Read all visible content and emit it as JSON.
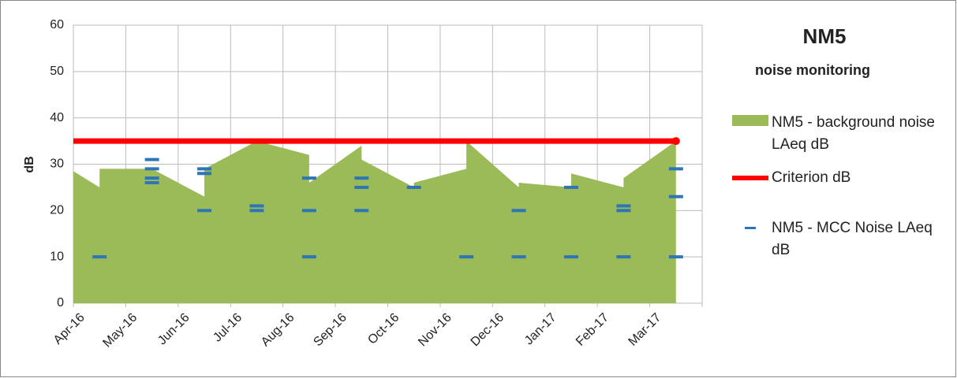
{
  "chart_data": {
    "type": "combo",
    "title": "NM5",
    "subtitle": "noise monitoring",
    "y_label": "dB",
    "categories": [
      "Apr-16",
      "May-16",
      "Jun-16",
      "Jul-16",
      "Aug-16",
      "Sep-16",
      "Oct-16",
      "Nov-16",
      "Dec-16",
      "Jan-17",
      "Feb-17",
      "Mar-17"
    ],
    "xlim": [
      0,
      12
    ],
    "ylim": [
      0,
      60
    ],
    "yticks": [
      0,
      10,
      20,
      30,
      40,
      50,
      60
    ],
    "grid": true,
    "series": [
      {
        "name": "NM5 - background noise  LAeq dB",
        "type": "area",
        "color": "#9bbb59",
        "x": [
          0,
          0.5,
          0.5,
          1.5,
          2.5,
          2.5,
          3.5,
          4.5,
          4.5,
          5.5,
          5.5,
          6.5,
          6.5,
          7.5,
          7.5,
          8.5,
          8.5,
          9.5,
          9.5,
          10.5,
          10.5,
          11.5
        ],
        "values": [
          28.5,
          25,
          29,
          29,
          23,
          29,
          35,
          32,
          26,
          34,
          31,
          25,
          26,
          29,
          35,
          25,
          26,
          25,
          28,
          25,
          27,
          35
        ]
      },
      {
        "name": "Criterion dB",
        "type": "line",
        "color": "#ff0000",
        "x": [
          0,
          11.5
        ],
        "values": [
          35,
          35
        ]
      },
      {
        "name": "NM5 - MCC Noise LAeq dB",
        "type": "scatter",
        "color": "#2e75b6",
        "x": [
          0.5,
          1.5,
          1.5,
          1.5,
          1.5,
          2.5,
          2.5,
          2.5,
          3.5,
          3.5,
          4.5,
          4.5,
          4.5,
          5.5,
          5.5,
          5.5,
          6.5,
          7.5,
          8.5,
          8.5,
          9.5,
          9.5,
          10.5,
          10.5,
          10.5,
          11.5,
          11.5,
          11.5
        ],
        "values": [
          10,
          31,
          29,
          27,
          26,
          29,
          28,
          20,
          21,
          20,
          27,
          20,
          10,
          27,
          25,
          20,
          25,
          10,
          20,
          10,
          25,
          10,
          21,
          20,
          10,
          29,
          23,
          10
        ]
      }
    ]
  }
}
